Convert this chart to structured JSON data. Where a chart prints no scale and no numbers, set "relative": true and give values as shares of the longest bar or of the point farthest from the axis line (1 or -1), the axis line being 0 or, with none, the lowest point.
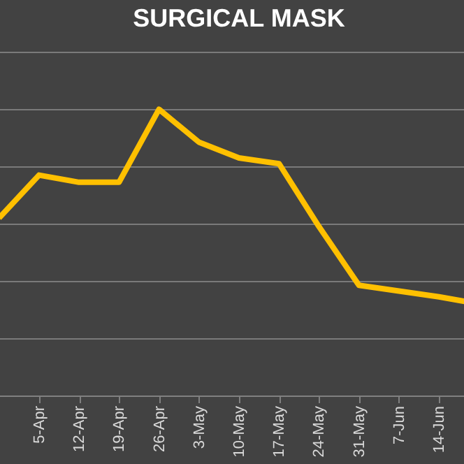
{
  "chart_data": {
    "type": "line",
    "title": "SURGICAL MASK",
    "relative": true,
    "grid": "y",
    "marker": "none",
    "line_style": "solid",
    "categories": [
      null,
      "5-Apr",
      "12-Apr",
      "19-Apr",
      "26-Apr",
      "3-May",
      "10-May",
      "17-May",
      "24-May",
      "31-May",
      "7-Jun",
      "14-Jun",
      null
    ],
    "series": [
      {
        "color": "#ffc000",
        "values": [
          0.62,
          0.77,
          0.745,
          0.745,
          1,
          0.885,
          0.83,
          0.81,
          0.59,
          0.385,
          0.365,
          0.345,
          0.32
        ]
      }
    ]
  }
}
